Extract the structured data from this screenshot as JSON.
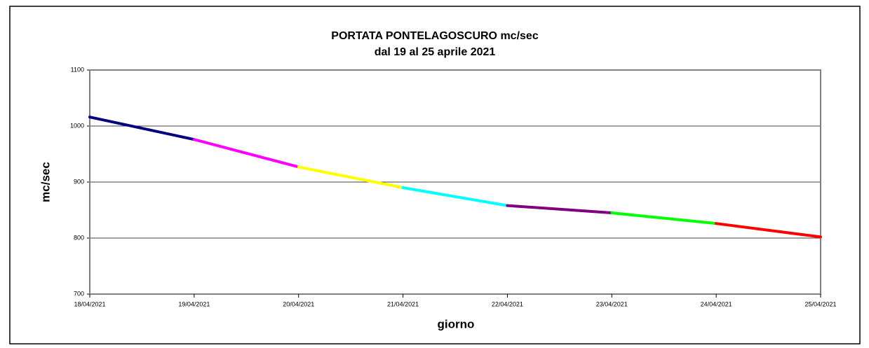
{
  "chart_data": {
    "type": "line",
    "title": "PORTATA PONTELAGOSCURO mc/sec",
    "subtitle": "dal 19 al 25 aprile 2021",
    "x_label": "giorno",
    "y_label": "mc/sec",
    "categories": [
      "18/04/2021",
      "19/04/2021",
      "20/04/2021",
      "21/04/2021",
      "22/04/2021",
      "23/04/2021",
      "24/04/2021",
      "25/04/2021"
    ],
    "values": [
      1016,
      976,
      927,
      890,
      858,
      845,
      826,
      802
    ],
    "segment_colors": [
      "#000080",
      "#ff00ff",
      "#ffff00",
      "#00ffff",
      "#800080",
      "#00ff00",
      "#ff0000"
    ],
    "ylim": [
      700,
      1100
    ],
    "yticks": [
      700,
      800,
      900,
      1000,
      1100
    ],
    "grid": true
  }
}
